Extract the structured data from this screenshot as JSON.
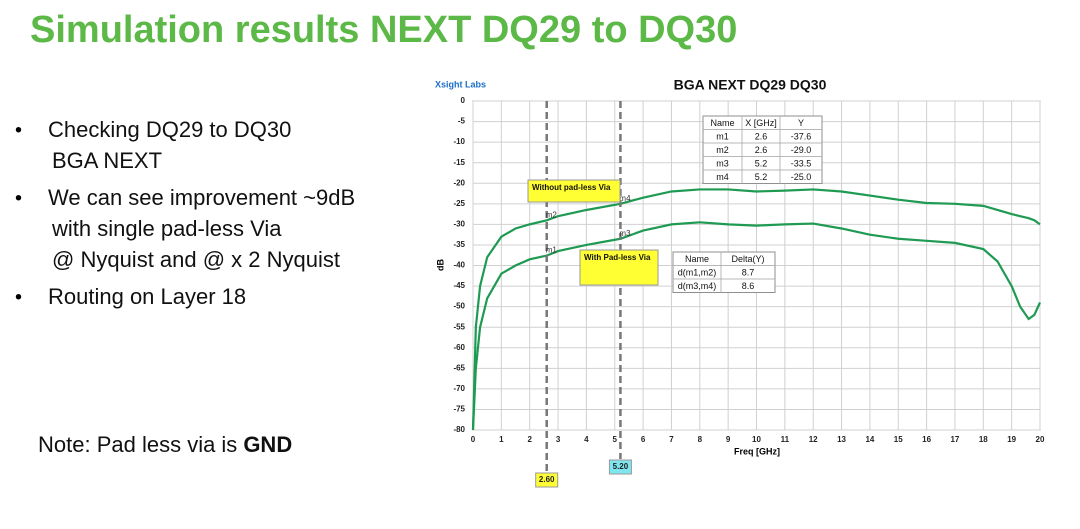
{
  "title": "Simulation results NEXT DQ29 to DQ30",
  "bullets": [
    [
      "Checking DQ29 to DQ30",
      "BGA NEXT"
    ],
    [
      "We can see improvement ~9dB",
      "with single pad-less Via",
      "@ Nyquist and @ x 2 Nyquist"
    ],
    [
      "Routing on Layer 18"
    ]
  ],
  "note": {
    "text": "Note: Pad less via is",
    "bold": "GND"
  },
  "chart_data": {
    "type": "line",
    "title": "BGA NEXT DQ29 DQ30",
    "brand": "Xsight Labs",
    "xlabel": "Freq [GHz]",
    "ylabel": "dB",
    "xlim": [
      0,
      20
    ],
    "ylim": [
      -80,
      0
    ],
    "xticks": [
      0,
      1,
      2,
      3,
      4,
      5,
      6,
      7,
      8,
      9,
      10,
      11,
      12,
      13,
      14,
      15,
      16,
      17,
      18,
      19,
      20
    ],
    "yticks": [
      0,
      -5,
      -10,
      -15,
      -20,
      -25,
      -30,
      -35,
      -40,
      -45,
      -50,
      -55,
      -60,
      -65,
      -70,
      -75,
      -80
    ],
    "grid": true,
    "x": [
      0,
      0.1,
      0.25,
      0.5,
      1,
      1.5,
      2,
      2.6,
      3,
      4,
      5.2,
      6,
      7,
      8,
      9,
      10,
      11,
      12,
      13,
      14,
      15,
      16,
      17,
      18,
      18.5,
      19,
      19.3,
      19.6,
      19.8,
      20
    ],
    "series": [
      {
        "color": "#1e9a52",
        "values": [
          -80,
          -55,
          -45,
          -38,
          -33,
          -31,
          -30,
          -29,
          -28,
          -26.5,
          -25,
          -23.5,
          -22,
          -21.5,
          -21.5,
          -22,
          -21.8,
          -21.5,
          -22,
          -23,
          -24,
          -24.8,
          -25,
          -25.5,
          -26.5,
          -27.5,
          -28,
          -28.5,
          -29,
          -30
        ]
      },
      {
        "color": "#1e9a52",
        "values": [
          -80,
          -65,
          -55,
          -48,
          -42,
          -40,
          -38.5,
          -37.6,
          -36.5,
          -35,
          -33.5,
          -31.5,
          -30,
          -29.5,
          -30,
          -30.3,
          -30,
          -29.8,
          -31,
          -32.5,
          -33.5,
          -34,
          -34.5,
          -36,
          -39,
          -45,
          -50,
          -53,
          -52,
          -49
        ]
      }
    ],
    "marker_lines": [
      {
        "value": 2.6,
        "label": "2.60"
      },
      {
        "value": 5.2,
        "label": "5.20"
      }
    ],
    "markers": {
      "header": [
        "Name",
        "X [GHz]",
        "Y"
      ],
      "rows": [
        [
          "m1",
          2.6,
          -37.6
        ],
        [
          "m2",
          2.6,
          {
            "value": -29,
            "label": "-29.0"
          }
        ],
        [
          "m3",
          5.2,
          -33.5
        ],
        [
          "m4",
          5.2,
          {
            "value": -25,
            "label": "-25.0"
          }
        ]
      ]
    },
    "deltas": {
      "header": [
        "Name",
        "Delta(Y)"
      ],
      "rows": [
        [
          "d(m1,m2)",
          8.7
        ],
        [
          "d(m3,m4)",
          8.6
        ]
      ]
    },
    "annotations": [
      "Without pad-less Via",
      "With Pad-less Via"
    ]
  }
}
